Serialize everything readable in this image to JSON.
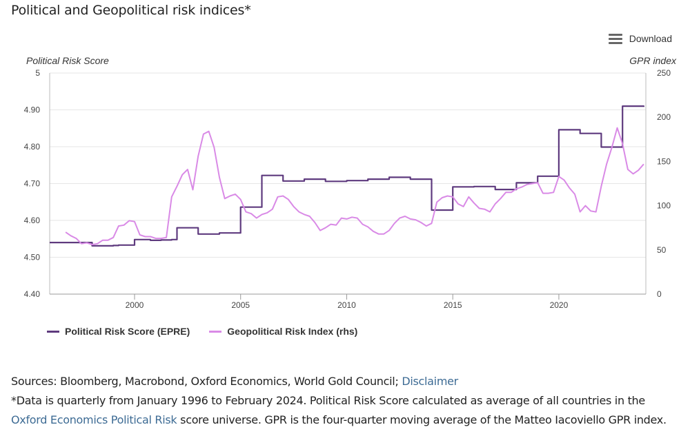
{
  "title": "Political and Geopolitical risk indices*",
  "download_label": "Download",
  "left_axis_title": "Political Risk Score",
  "right_axis_title": "GPR index",
  "legend": {
    "series1": "Political Risk Score (EPRE)",
    "series2": "Geopolitical Risk Index (rhs)"
  },
  "notes": {
    "sources_prefix": "Sources: Bloomberg, Macrobond, Oxford Economics, World Gold Council; ",
    "disclaimer_link": "Disclaimer",
    "line2": "*Data is quarterly from January 1996 to February 2024. Political Risk Score calculated as average of all countries in the",
    "oxford_link": "Oxford Economics Political Risk",
    "line3_rest": " score universe. GPR is the four-quarter moving average of the Matteo Iacoviello GPR index."
  },
  "colors": {
    "series1": "#5e3a7e",
    "series2": "#d98ae6",
    "grid": "#e6e6e6",
    "link": "#3d6b94"
  },
  "chart_data": {
    "type": "line",
    "title": "Political and Geopolitical risk indices*",
    "xlabel": "",
    "ylabel": "Political Risk Score",
    "y2label": "GPR index",
    "xlim": [
      1996.0,
      2024.1
    ],
    "ylim": [
      4.4,
      5.0
    ],
    "y2lim": [
      0,
      250
    ],
    "x_ticks": [
      2000,
      2005,
      2010,
      2015,
      2020
    ],
    "y_ticks": [
      "4.40",
      "4.50",
      "4.60",
      "4.70",
      "4.80",
      "4.90",
      "5"
    ],
    "y_tick_values": [
      4.4,
      4.5,
      4.6,
      4.7,
      4.8,
      4.9,
      5.0
    ],
    "y2_ticks": [
      0,
      50,
      100,
      150,
      200,
      250
    ],
    "grid": true,
    "legend_position": "bottom-left",
    "series": [
      {
        "name": "Political Risk Score (EPRE)",
        "axis": "left",
        "step": true,
        "x": [
          1996.0,
          1997.0,
          1997.25,
          1997.5,
          1998.0,
          1998.5,
          1999.0,
          1999.25,
          1999.5,
          1999.75,
          2000.0,
          2000.25,
          2000.5,
          2000.75,
          2001.0,
          2001.25,
          2001.5,
          2001.75,
          2002.0,
          2002.25,
          2002.5,
          2002.75,
          2003.0,
          2003.25,
          2003.5,
          2003.75,
          2004.0,
          2004.25,
          2004.5,
          2004.75,
          2005.0,
          2005.25,
          2005.5,
          2005.75,
          2006.0,
          2006.25,
          2006.5,
          2006.75,
          2007.0,
          2007.25,
          2007.5,
          2007.75,
          2008.0,
          2008.25,
          2008.5,
          2008.75,
          2009.0,
          2009.25,
          2009.5,
          2009.75,
          2010.0,
          2010.25,
          2010.5,
          2010.75,
          2011.0,
          2011.25,
          2011.5,
          2011.75,
          2012.0,
          2012.25,
          2012.5,
          2012.75,
          2013.0,
          2013.25,
          2013.5,
          2013.75,
          2014.0,
          2014.25,
          2014.5,
          2014.75,
          2015.0,
          2015.25,
          2015.5,
          2015.75,
          2016.0,
          2016.25,
          2016.5,
          2016.75,
          2017.0,
          2017.25,
          2017.5,
          2017.75,
          2018.0,
          2018.25,
          2018.5,
          2018.75,
          2019.0,
          2019.25,
          2019.5,
          2019.75,
          2020.0,
          2020.25,
          2020.5,
          2020.75,
          2021.0,
          2021.25,
          2021.5,
          2021.75,
          2022.0,
          2022.25,
          2022.5,
          2022.75,
          2023.0,
          2023.25,
          2023.5,
          2023.75,
          2024.0
        ],
        "values": [
          4.54,
          4.54,
          4.54,
          4.54,
          4.531,
          4.531,
          4.532,
          4.533,
          4.533,
          4.533,
          4.548,
          4.548,
          4.548,
          4.546,
          4.546,
          4.547,
          4.547,
          4.548,
          4.58,
          4.58,
          4.58,
          4.58,
          4.563,
          4.563,
          4.563,
          4.563,
          4.566,
          4.566,
          4.566,
          4.566,
          4.636,
          4.636,
          4.636,
          4.636,
          4.722,
          4.722,
          4.722,
          4.722,
          4.707,
          4.707,
          4.707,
          4.707,
          4.712,
          4.712,
          4.712,
          4.712,
          4.706,
          4.706,
          4.706,
          4.706,
          4.708,
          4.708,
          4.708,
          4.708,
          4.712,
          4.712,
          4.712,
          4.712,
          4.717,
          4.717,
          4.717,
          4.717,
          4.712,
          4.712,
          4.712,
          4.712,
          4.628,
          4.628,
          4.628,
          4.628,
          4.691,
          4.691,
          4.691,
          4.691,
          4.692,
          4.692,
          4.692,
          4.692,
          4.684,
          4.684,
          4.684,
          4.684,
          4.702,
          4.702,
          4.702,
          4.702,
          4.72,
          4.72,
          4.72,
          4.72,
          4.846,
          4.846,
          4.846,
          4.846,
          4.836,
          4.836,
          4.836,
          4.836,
          4.799,
          4.799,
          4.799,
          4.799,
          4.91,
          4.91,
          4.91,
          4.91,
          4.908
        ]
      },
      {
        "name": "Geopolitical Risk Index (rhs)",
        "axis": "right",
        "step": false,
        "x": [
          1996.75,
          1997.0,
          1997.25,
          1997.5,
          1997.75,
          1998.0,
          1998.25,
          1998.5,
          1998.75,
          1999.0,
          1999.25,
          1999.5,
          1999.75,
          2000.0,
          2000.25,
          2000.5,
          2000.75,
          2001.0,
          2001.25,
          2001.5,
          2001.75,
          2002.0,
          2002.25,
          2002.5,
          2002.75,
          2003.0,
          2003.25,
          2003.5,
          2003.75,
          2004.0,
          2004.25,
          2004.5,
          2004.75,
          2005.0,
          2005.25,
          2005.5,
          2005.75,
          2006.0,
          2006.25,
          2006.5,
          2006.75,
          2007.0,
          2007.25,
          2007.5,
          2007.75,
          2008.0,
          2008.25,
          2008.5,
          2008.75,
          2009.0,
          2009.25,
          2009.5,
          2009.75,
          2010.0,
          2010.25,
          2010.5,
          2010.75,
          2011.0,
          2011.25,
          2011.5,
          2011.75,
          2012.0,
          2012.25,
          2012.5,
          2012.75,
          2013.0,
          2013.25,
          2013.5,
          2013.75,
          2014.0,
          2014.25,
          2014.5,
          2014.75,
          2015.0,
          2015.25,
          2015.5,
          2015.75,
          2016.0,
          2016.25,
          2016.5,
          2016.75,
          2017.0,
          2017.25,
          2017.5,
          2017.75,
          2018.0,
          2018.25,
          2018.5,
          2018.75,
          2019.0,
          2019.25,
          2019.5,
          2019.75,
          2020.0,
          2020.25,
          2020.5,
          2020.75,
          2021.0,
          2021.25,
          2021.5,
          2021.75,
          2022.0,
          2022.25,
          2022.5,
          2022.75,
          2023.0,
          2023.25,
          2023.5,
          2023.75,
          2024.0
        ],
        "values": [
          70,
          66,
          63,
          57,
          58,
          56,
          57,
          61,
          61,
          64,
          77,
          78,
          83,
          82,
          67,
          65,
          65,
          63,
          63,
          64,
          110,
          122,
          135,
          141,
          118,
          156,
          181,
          184,
          166,
          132,
          108,
          111,
          113,
          107,
          93,
          91,
          86,
          90,
          92,
          96,
          110,
          111,
          107,
          99,
          93,
          90,
          88,
          81,
          72,
          75,
          79,
          78,
          86,
          85,
          87,
          86,
          79,
          76,
          71,
          68,
          68,
          72,
          80,
          86,
          88,
          85,
          84,
          81,
          77,
          80,
          104,
          109,
          111,
          110,
          102,
          99,
          110,
          103,
          97,
          96,
          93,
          102,
          108,
          115,
          115,
          119,
          121,
          124,
          125,
          126,
          114,
          114,
          115,
          133,
          129,
          120,
          113,
          93,
          100,
          94,
          93,
          122,
          147,
          166,
          188,
          170,
          141,
          136,
          140,
          147
        ]
      }
    ]
  }
}
